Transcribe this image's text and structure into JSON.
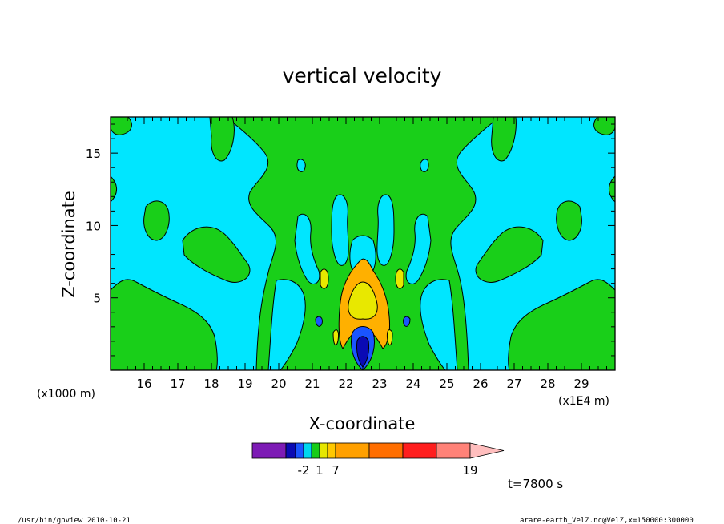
{
  "chart_data": {
    "type": "heatmap",
    "title": "vertical velocity",
    "xlabel": "X-coordinate",
    "ylabel": "Z-coordinate",
    "x_unit_label": "(x1E4 m)",
    "y_unit_label": "(x1000 m)",
    "x_ticks": [
      "16",
      "17",
      "18",
      "19",
      "20",
      "21",
      "22",
      "23",
      "24",
      "25",
      "26",
      "27",
      "28",
      "29"
    ],
    "y_ticks": [
      "5",
      "10",
      "15"
    ],
    "xlim": [
      15,
      30
    ],
    "ylim": [
      0,
      17.5
    ],
    "grid": false,
    "colorbar": {
      "colors": [
        "#7d1bb5",
        "#0a0ab4",
        "#1a55ff",
        "#00d7ee",
        "#18cc18",
        "#e6e600",
        "#ffc800",
        "#ffa000",
        "#ff6e00",
        "#ff1e1e",
        "#ff8278",
        "#ffbebe"
      ],
      "labels": [
        {
          "text": "-2",
          "index": 3
        },
        {
          "text": "1",
          "index": 5
        },
        {
          "text": "7",
          "index": 7
        },
        {
          "text": "19",
          "index": 11
        }
      ]
    },
    "regions": {
      "background": "#00e6ff",
      "green": "#19cf19",
      "orange": "#ffb000",
      "yellow": "#e8e800",
      "blue": "#1010c0",
      "darkblue": "#000090"
    }
  },
  "time_label": "t=7800 s",
  "footer_left": "/usr/bin/gpview  2010-10-21",
  "footer_right": "arare-earth_VelZ.nc@VelZ,x=150000:300000"
}
